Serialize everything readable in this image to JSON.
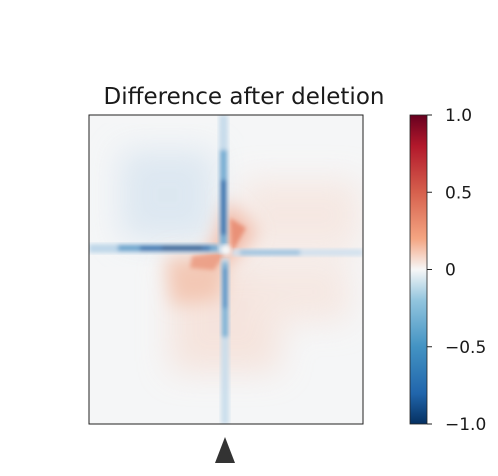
{
  "chart_data": {
    "type": "heatmap",
    "title": "Difference after deletion",
    "xlabel": "",
    "ylabel": "",
    "colorbar": {
      "range": [
        -1.0,
        1.0
      ],
      "ticks": [
        1.0,
        0.5,
        0,
        -0.5,
        -1.0
      ],
      "tick_labels": [
        "1.0",
        "0.5",
        "0",
        "−0.5",
        "−1.0"
      ],
      "colormap": "diverging red-white-blue",
      "high_color": "#67001f",
      "mid_color": "#f7f7f7",
      "low_color": "#053061"
    },
    "marker": {
      "shape": "triangle",
      "position": "below heatmap, at deletion site",
      "color": "#333333"
    },
    "grid": false,
    "legend": "colorbar right"
  }
}
